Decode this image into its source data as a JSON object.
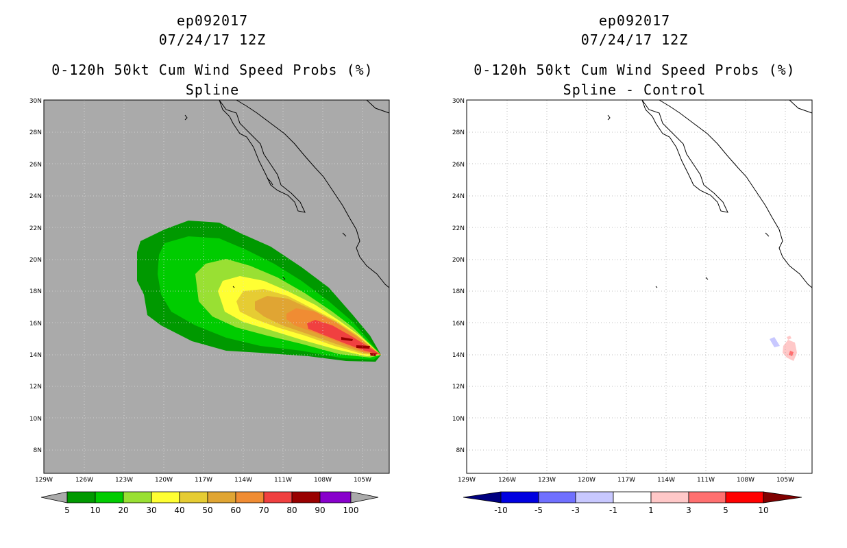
{
  "left_panel": {
    "title_storm": "ep092017",
    "title_date": "07/24/17 12Z",
    "title_product": "0-120h 50kt Cum Wind Speed Probs (%)",
    "title_method": "Spline",
    "background_color": "#aaaaaa",
    "lat_labels": [
      "30N",
      "28N",
      "26N",
      "24N",
      "22N",
      "20N",
      "18N",
      "16N",
      "14N",
      "12N",
      "10N",
      "8N"
    ],
    "lon_labels": [
      "129W",
      "126W",
      "123W",
      "120W",
      "117W",
      "114W",
      "111W",
      "108W",
      "105W"
    ],
    "colorbar": {
      "colors": [
        "#009900",
        "#00cc00",
        "#99e033",
        "#ffff33",
        "#e6cc33",
        "#e0a533",
        "#f08c33",
        "#f04040",
        "#990000",
        "#8800cc"
      ],
      "labels": [
        "5",
        "10",
        "20",
        "30",
        "40",
        "50",
        "60",
        "70",
        "80",
        "90",
        "100"
      ]
    }
  },
  "right_panel": {
    "title_storm": "ep092017",
    "title_date": "07/24/17 12Z",
    "title_product": "0-120h 50kt Cum Wind Speed Probs (%)",
    "title_method": "Spline - Control",
    "background_color": "#ffffff",
    "lat_labels": [
      "30N",
      "28N",
      "26N",
      "24N",
      "22N",
      "20N",
      "18N",
      "16N",
      "14N",
      "12N",
      "10N",
      "8N"
    ],
    "lon_labels": [
      "129W",
      "126W",
      "123W",
      "120W",
      "117W",
      "114W",
      "111W",
      "108W",
      "105W"
    ],
    "colorbar": {
      "colors": [
        "#0000e0",
        "#7070ff",
        "#c8c8ff",
        "#ffffff",
        "#ffc8c8",
        "#ff7070",
        "#ff0000"
      ],
      "labels": [
        "-10",
        "-5",
        "-3",
        "-1",
        "1",
        "3",
        "5",
        "10"
      ]
    }
  }
}
